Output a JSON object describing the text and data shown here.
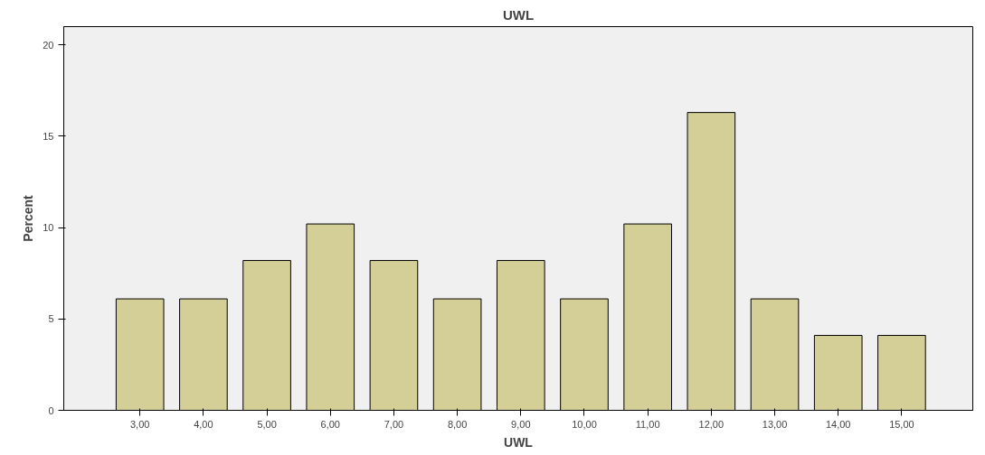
{
  "chart_data": {
    "type": "bar",
    "title": "UWL",
    "xlabel": "UWL",
    "ylabel": "Percent",
    "categories": [
      "3,00",
      "4,00",
      "5,00",
      "6,00",
      "7,00",
      "8,00",
      "9,00",
      "10,00",
      "11,00",
      "12,00",
      "13,00",
      "14,00",
      "15,00"
    ],
    "values": [
      6.1,
      6.1,
      8.2,
      10.2,
      8.2,
      6.1,
      8.2,
      6.1,
      10.2,
      16.3,
      6.1,
      4.1,
      4.1
    ],
    "color": "#d4cf96",
    "ylim": [
      0,
      21
    ],
    "yticks": [
      0,
      5,
      10,
      15,
      20
    ],
    "grid": false
  }
}
